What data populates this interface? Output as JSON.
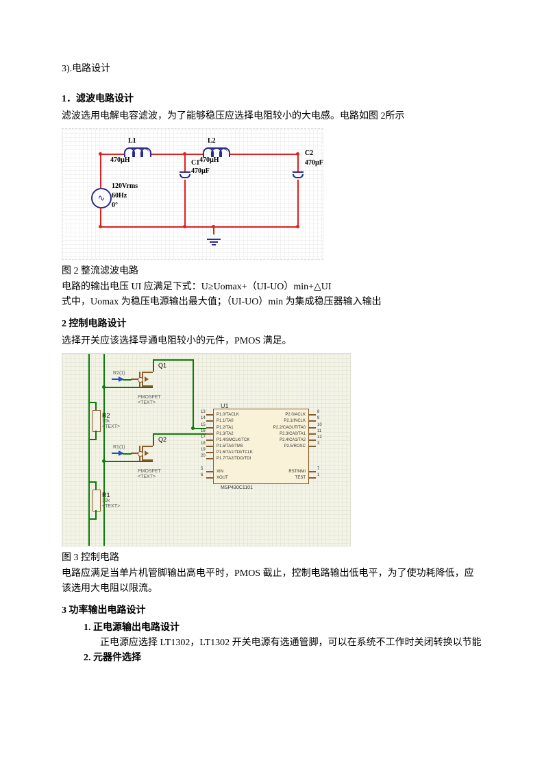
{
  "top_label": "3).电路设计",
  "s1": {
    "heading": "1．滤波电路设计",
    "body": "滤波选用电解电容滤波，为了能够稳压应选择电阻较小的大电感。电路如图 2所示"
  },
  "circuit1": {
    "L1": {
      "name": "L1",
      "val": "470µH"
    },
    "L2": {
      "name": "L2",
      "val": "470µH"
    },
    "C1": {
      "name": "C1",
      "val": "470µF"
    },
    "C2": {
      "name": "C2",
      "val": "470µF"
    },
    "src": {
      "vrms": "120Vrms",
      "hz": "60Hz",
      "phase": "0°"
    },
    "colors": {
      "wire": "#dd2222",
      "component": "#2b2b8c"
    }
  },
  "fig2_caption": "图 2 整流滤波电路",
  "fig2_txt1": "电路的输出电压 UI 应满足下式：U≥Uomax+（UI-UO）min+△UI",
  "fig2_txt2": "式中，Uomax 为稳压电源输出最大值；（UI-UO）min 为集成稳压器输入输出",
  "s2": {
    "heading": "2  控制电路设计",
    "body": "选择开关应该选择导通电阻较小的元件，PMOS 满足。"
  },
  "circuit2": {
    "Q1": "Q1",
    "Q2": "Q2",
    "U1": "U1",
    "R1": {
      "name": "R1",
      "val": "10k"
    },
    "R2": {
      "name": "R2",
      "val": "10k"
    },
    "R1s": "R1(1)",
    "R2s": "R2(1)",
    "pmos_label": "PMOSFET",
    "text_hint": "<TEXT>",
    "chip_name": "MSP430C1101",
    "pins_left": [
      "P1.0/TACLK",
      "P1.1/TA0",
      "P1.2/TA1",
      "P1.3/TA2",
      "P1.4/SMCLK/TCK",
      "P1.5/TA0/TMS",
      "P1.6/TA1/TDI/TCLK",
      "P1.7/TA2/TDO/TDI",
      "",
      "XIN",
      "XOUT"
    ],
    "pin_nums_left": [
      "13",
      "14",
      "15",
      "16",
      "17",
      "18",
      "19",
      "20",
      "",
      "5",
      "6"
    ],
    "pins_right": [
      "P2.0/ACLK",
      "P2.1/INCLK",
      "P2.2/CAOUT/TA0",
      "P2.3/CA0/TA1",
      "P2.4/CA1/TA2",
      "P2.5/ROSC",
      "",
      "",
      "",
      "RST/NMI",
      "TEST"
    ],
    "pin_nums_right": [
      "8",
      "9",
      "10",
      "11",
      "12",
      "3",
      "",
      "",
      "",
      "7",
      "1"
    ]
  },
  "fig3_caption": "图 3 控制电路",
  "fig3_txt": "电路应满足当单片机管脚输出高电平时，PMOS 截止，控制电路输出低电平，为了使功耗降低，应该选用大电阻以限流。",
  "s3": {
    "heading": "3  功率输出电路设计",
    "sub1_label": "1.  正电源输出电路设计",
    "sub1_body": "正电源应选择 LT1302，LT1302 开关电源有选通管脚，可以在系统不工作时关闭转换以节能",
    "sub2_label": "2.  元器件选择"
  }
}
